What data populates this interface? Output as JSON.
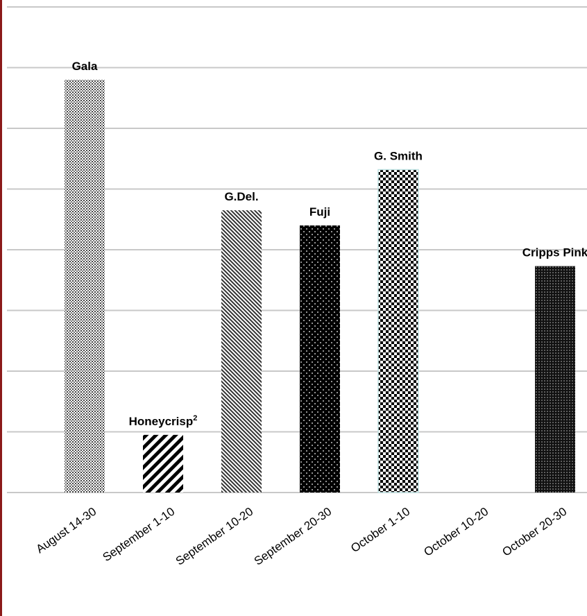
{
  "chart_data": {
    "type": "bar",
    "title": "",
    "xlabel": "",
    "ylabel": "",
    "categories": [
      "August 14-30",
      "September 1-10",
      "September 10-20",
      "September 20-30",
      "October 1-10",
      "October 10-20",
      "October 20-30"
    ],
    "bars": [
      {
        "category_index": 0,
        "label": "Gala",
        "value": 6.8,
        "pattern": "fine-dots"
      },
      {
        "category_index": 1,
        "label": "Honeycrisp",
        "label_superscript": "2",
        "value": 0.95,
        "pattern": "diagonal-stripes"
      },
      {
        "category_index": 2,
        "label": "G.Del.",
        "value": 4.65,
        "pattern": "fine-diagonal-hatch"
      },
      {
        "category_index": 3,
        "label": "Fuji",
        "value": 4.4,
        "pattern": "white-dots-on-black"
      },
      {
        "category_index": 4,
        "label": "G. Smith",
        "value": 5.32,
        "pattern": "checkerboard"
      },
      {
        "category_index": 6,
        "label": "Cripps Pink",
        "value": 3.73,
        "pattern": "dense-dots-on-black"
      }
    ],
    "ylim": [
      0,
      8
    ],
    "grid": true,
    "legend": "none",
    "colors": {
      "bar_fill": "#000000",
      "bar_background": "#ffffff",
      "grid": "#c8c8c8",
      "border": "#8b1a1a"
    }
  }
}
